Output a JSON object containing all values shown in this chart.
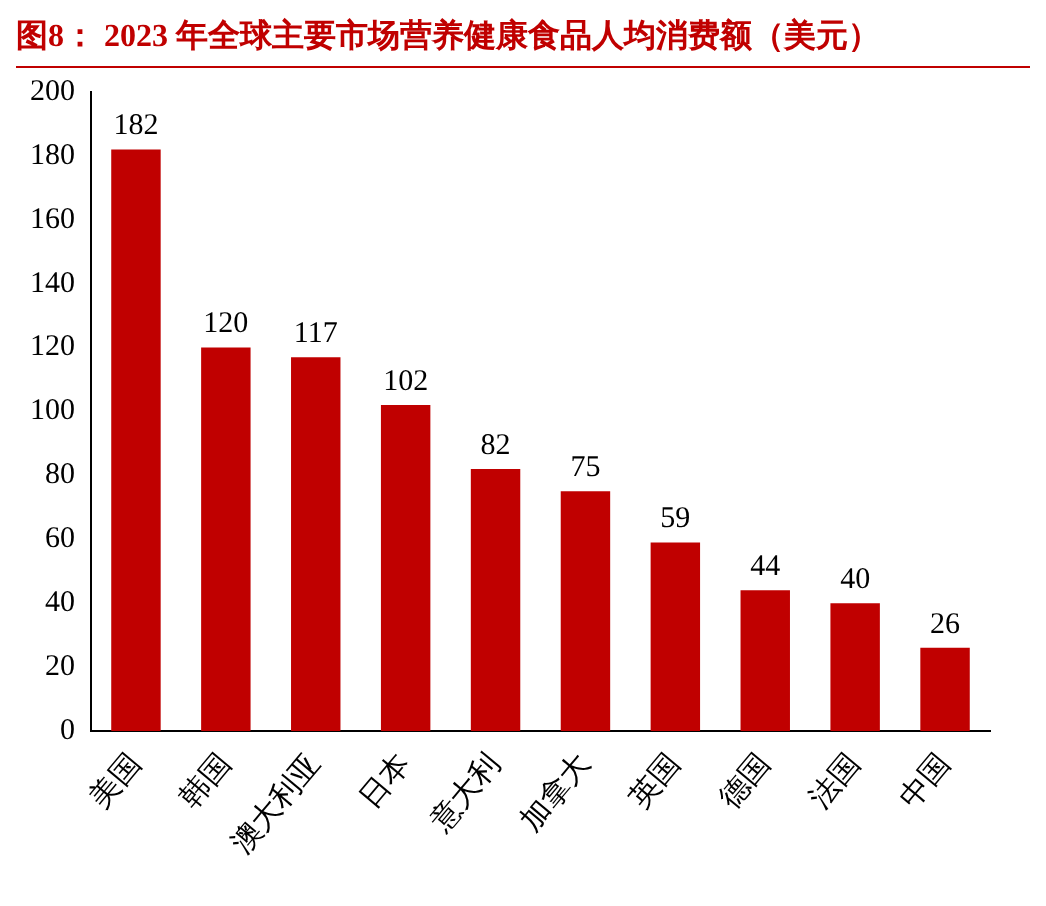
{
  "chart_data": {
    "type": "bar",
    "title": "图8：  2023 年全球主要市场营养健康食品人均消费额（美元）",
    "categories": [
      "美国",
      "韩国",
      "澳大利亚",
      "日本",
      "意大利",
      "加拿大",
      "英国",
      "德国",
      "法国",
      "中国"
    ],
    "values": [
      182,
      120,
      117,
      102,
      82,
      75,
      59,
      44,
      40,
      26
    ],
    "color": "#c00000",
    "ylim": [
      0,
      200
    ],
    "yticks": [
      0,
      20,
      40,
      60,
      80,
      100,
      120,
      140,
      160,
      180,
      200
    ],
    "grid": false,
    "legend": false,
    "data_labels": true
  }
}
